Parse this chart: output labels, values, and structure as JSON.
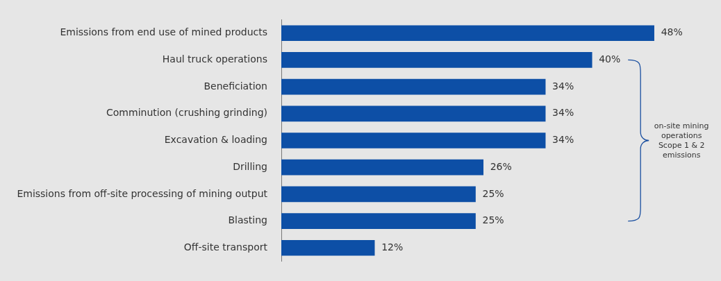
{
  "chart_data": {
    "type": "bar",
    "orientation": "horizontal",
    "categories": [
      "Emissions from end use of mined products",
      "Haul truck operations",
      "Beneficiation",
      "Comminution (crushing grinding)",
      "Excavation & loading",
      "Drilling",
      "Emissions from off-site processing of mining output",
      "Blasting",
      "Off-site transport"
    ],
    "values": [
      48,
      40,
      34,
      34,
      34,
      26,
      25,
      25,
      12
    ],
    "value_labels": [
      "48%",
      "40%",
      "34%",
      "34%",
      "34%",
      "26%",
      "25%",
      "25%",
      "12%"
    ],
    "color": "#0d4fa6",
    "annotations": [
      "on-site mining operations Scope 1 & 2 emissions"
    ],
    "legend": false
  }
}
